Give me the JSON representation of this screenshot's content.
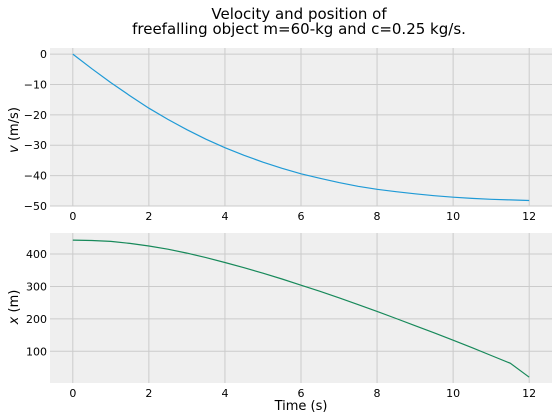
{
  "chart_data": [
    {
      "type": "line",
      "title_line1": "Velocity and position of",
      "title_line2": "freefalling object m=60-kg and c=0.25 kg/s.",
      "ylabel_var": "v",
      "ylabel_unit": " (m/s)",
      "xlabel": "",
      "xlim": [
        -0.6,
        12.6
      ],
      "ylim": [
        -50,
        2
      ],
      "xticks": [
        "0",
        "2",
        "4",
        "6",
        "8",
        "10",
        "12"
      ],
      "yticks": [
        "0",
        "−10",
        "−20",
        "−30",
        "−40",
        "−50"
      ],
      "grid": true,
      "color": "#1f9ad6",
      "series": [
        {
          "x": [
            0,
            0.5,
            1,
            1.5,
            2,
            2.5,
            3,
            3.5,
            4,
            4.5,
            5,
            5.5,
            6,
            6.5,
            7,
            7.5,
            8,
            8.5,
            9,
            9.5,
            10,
            10.5,
            11,
            11.5,
            12
          ],
          "values": [
            0,
            -4.8,
            -9.4,
            -13.7,
            -17.8,
            -21.5,
            -24.9,
            -28.0,
            -30.8,
            -33.3,
            -35.6,
            -37.6,
            -39.4,
            -40.9,
            -42.3,
            -43.5,
            -44.5,
            -45.3,
            -46.0,
            -46.6,
            -47.1,
            -47.5,
            -47.8,
            -48.0,
            -48.2
          ]
        }
      ]
    },
    {
      "type": "line",
      "ylabel_var": "x",
      "ylabel_unit": " (m)",
      "xlabel": "Time (s)",
      "xlim": [
        -0.6,
        12.6
      ],
      "ylim": [
        2,
        465
      ],
      "xticks": [
        "0",
        "2",
        "4",
        "6",
        "8",
        "10",
        "12"
      ],
      "yticks": [
        "100",
        "200",
        "300",
        "400"
      ],
      "grid": true,
      "color": "#17895a",
      "series": [
        {
          "x": [
            0,
            0.5,
            1,
            1.5,
            2,
            2.5,
            3,
            3.5,
            4,
            4.5,
            5,
            5.5,
            6,
            6.5,
            7,
            7.5,
            8,
            8.5,
            9,
            9.5,
            10,
            10.5,
            11,
            11.5,
            12
          ],
          "values": [
            443,
            442,
            439,
            433,
            425,
            415,
            403,
            389,
            374,
            358,
            341,
            323,
            304,
            285,
            265,
            244,
            223,
            201,
            179,
            157,
            134,
            111,
            87,
            63,
            20
          ]
        }
      ]
    }
  ]
}
